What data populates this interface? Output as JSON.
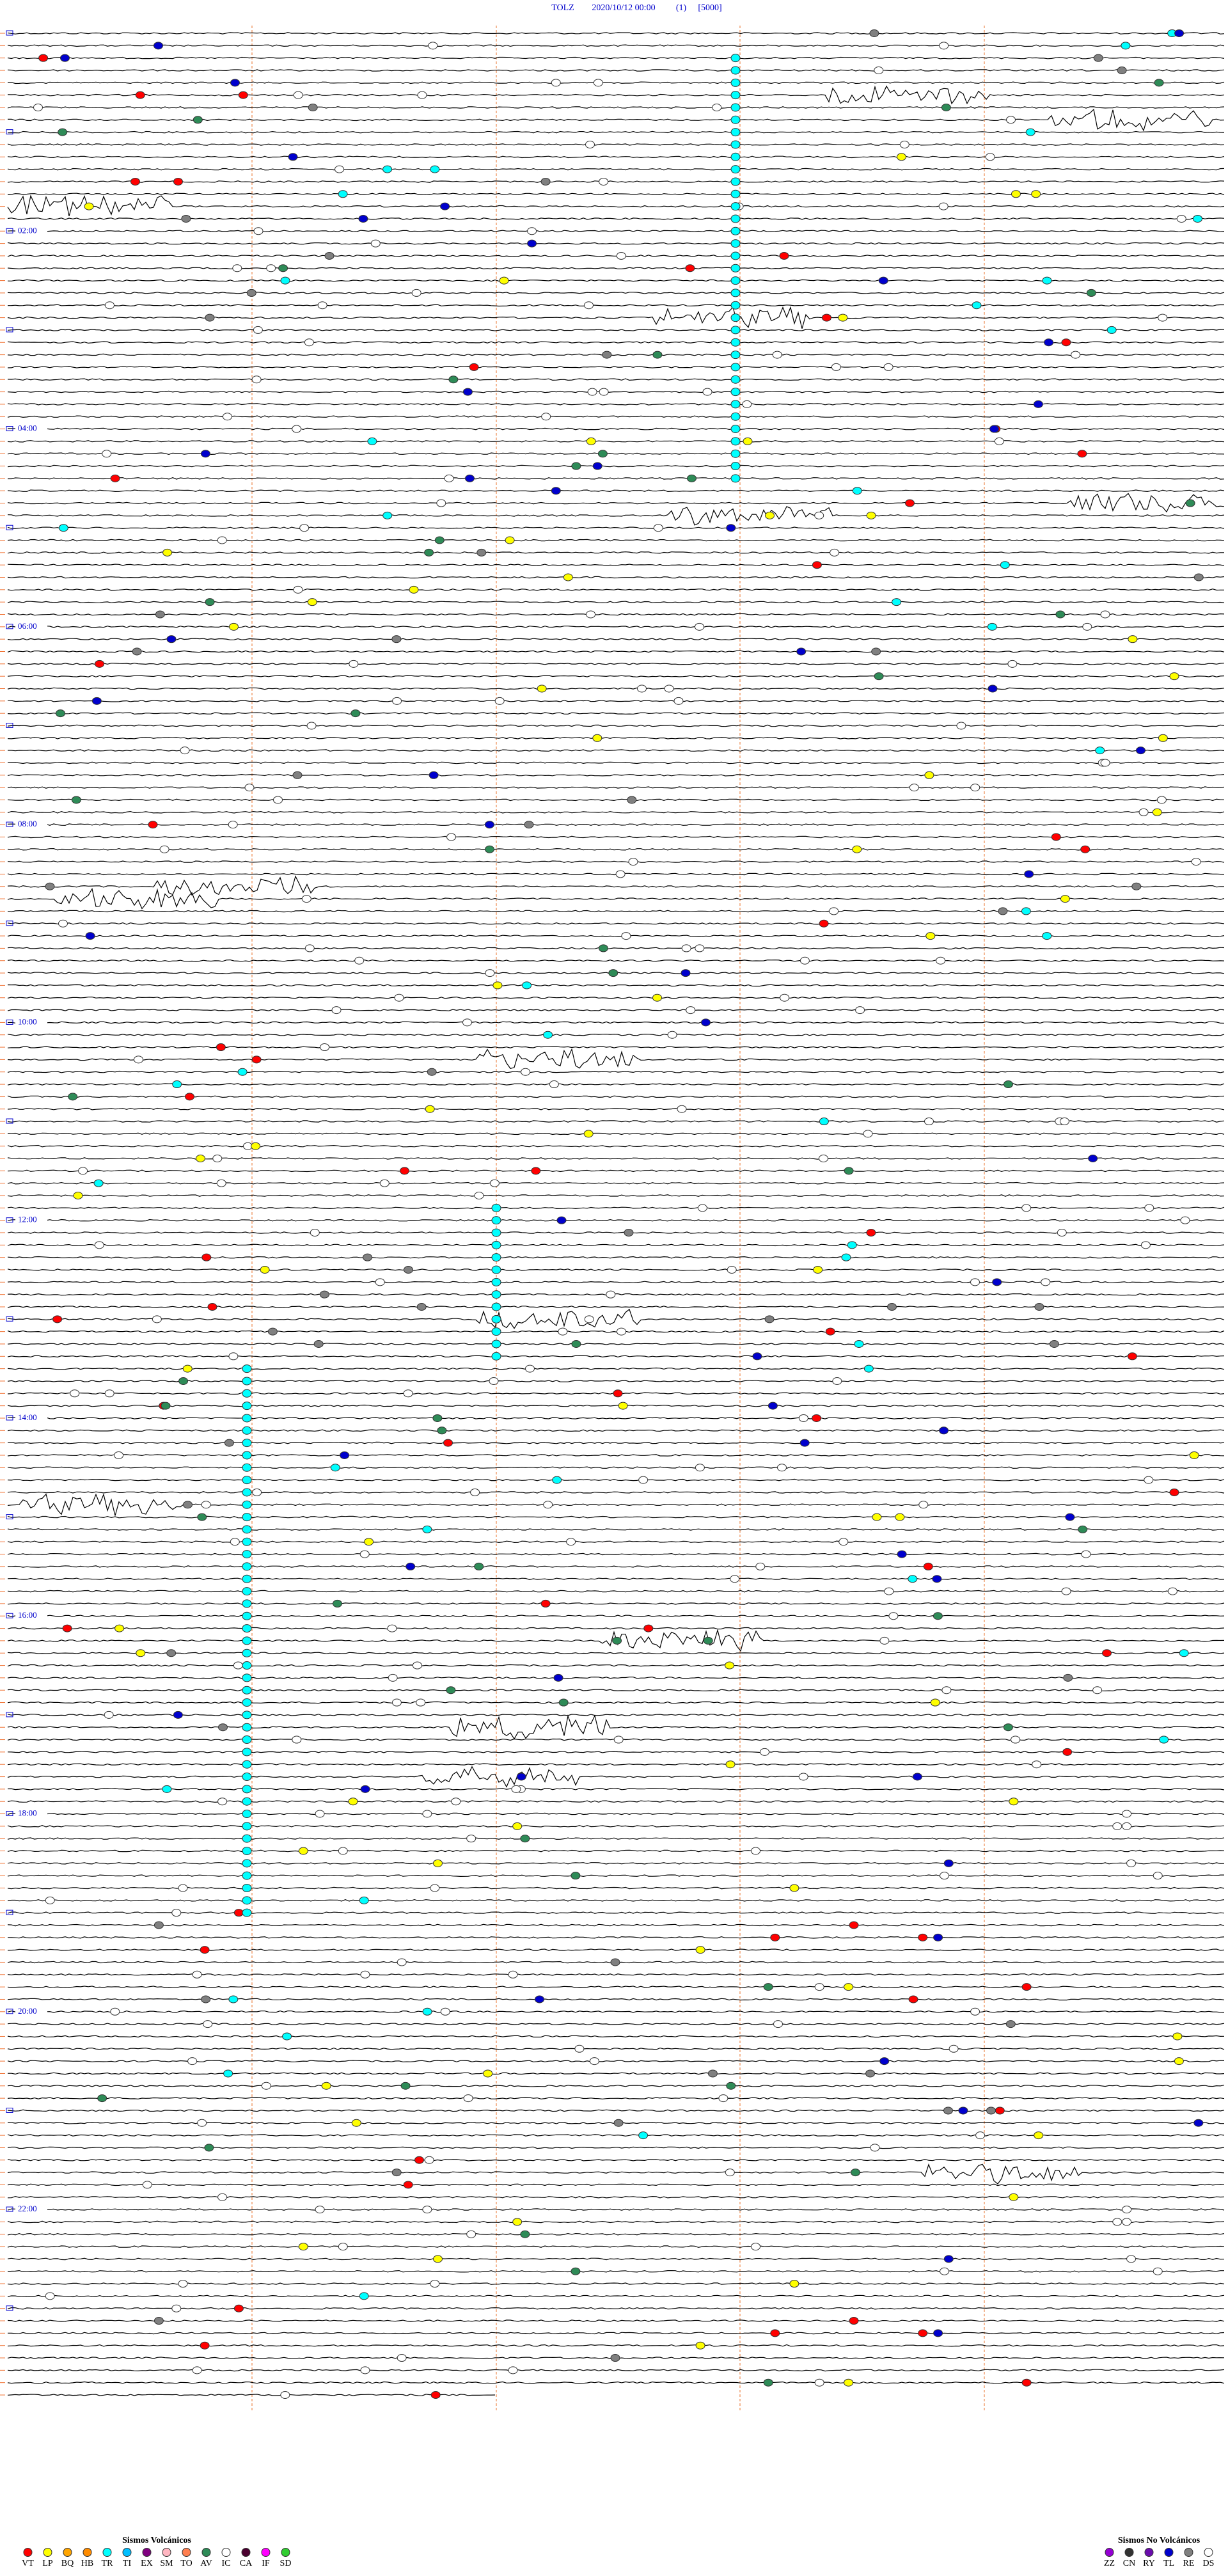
{
  "header": {
    "station": "TOLZ",
    "datetime": "2020/10/12 00:00",
    "channel": "(1)",
    "scale": "[5000]"
  },
  "time_labels": [
    "02:00",
    "04:00",
    "06:00",
    "08:00",
    "10:00",
    "12:00",
    "14:00",
    "16:00",
    "18:00",
    "20:00",
    "22:00"
  ],
  "legend": {
    "volcanic": {
      "title": "Sismos Volcánicos",
      "codes": [
        {
          "code": "VT",
          "color": "#ff0000"
        },
        {
          "code": "LP",
          "color": "#ffff00"
        },
        {
          "code": "BQ",
          "color": "#ffa500"
        },
        {
          "code": "HB",
          "color": "#ff8c00"
        },
        {
          "code": "TR",
          "color": "#00ffff"
        },
        {
          "code": "TI",
          "color": "#00bfff"
        },
        {
          "code": "EX",
          "color": "#800080"
        },
        {
          "code": "SM",
          "color": "#ffb6c1"
        },
        {
          "code": "TO",
          "color": "#ff7f50"
        },
        {
          "code": "AV",
          "color": "#2e8b57"
        },
        {
          "code": "IC",
          "color": "#ffffff"
        },
        {
          "code": "CA",
          "color": "#4b0030"
        },
        {
          "code": "IF",
          "color": "#ff00ff"
        },
        {
          "code": "SD",
          "color": "#32cd32"
        }
      ]
    },
    "non_volcanic": {
      "title": "Sismos No Volcánicos",
      "codes": [
        {
          "code": "ZZ",
          "color": "#9400d3"
        },
        {
          "code": "CN",
          "color": "#333333"
        },
        {
          "code": "RY",
          "color": "#6a0dad"
        },
        {
          "code": "TL",
          "color": "#0000cd"
        },
        {
          "code": "RE",
          "color": "#808080"
        },
        {
          "code": "DS",
          "color": "#ffffff"
        }
      ]
    }
  }
}
